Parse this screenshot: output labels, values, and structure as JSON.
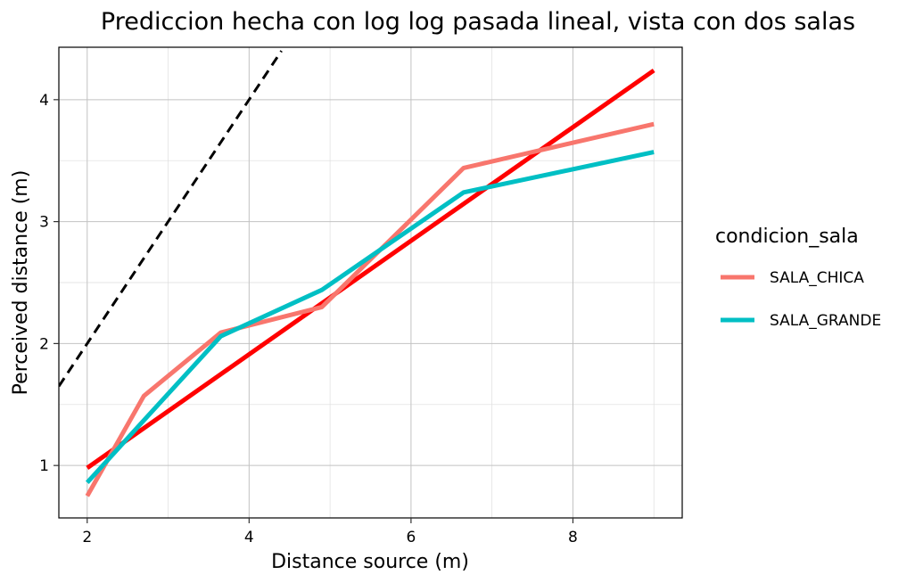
{
  "chart_data": {
    "type": "line",
    "title": "Prediccion hecha con log log pasada lineal, vista con dos salas",
    "xlabel": "Distance source (m)",
    "ylabel": "Perceived distance (m)",
    "xlim": [
      1.65,
      9.35
    ],
    "ylim": [
      0.57,
      4.43
    ],
    "x_ticks": [
      2,
      4,
      6,
      8
    ],
    "y_ticks": [
      1,
      2,
      3,
      4
    ],
    "grid": true,
    "legend": {
      "title": "condicion_sala",
      "placement": "right"
    },
    "series": [
      {
        "name": "SALA_CHICA",
        "color": "#F8766D",
        "x": [
          2.0,
          2.7,
          3.65,
          4.9,
          6.65,
          9.0
        ],
        "y": [
          0.75,
          1.57,
          2.09,
          2.3,
          3.44,
          3.8
        ]
      },
      {
        "name": "SALA_GRANDE",
        "color": "#00BFC4",
        "x": [
          2.0,
          2.7,
          3.65,
          4.9,
          6.65,
          9.0
        ],
        "y": [
          0.86,
          1.37,
          2.06,
          2.44,
          3.24,
          3.57
        ]
      }
    ],
    "fit_line": {
      "color": "#FF0000",
      "x": [
        2.0,
        9.0
      ],
      "y": [
        0.98,
        4.24
      ]
    },
    "identity_line": {
      "color": "#000000",
      "style": "dashed",
      "x": [
        1.65,
        4.4
      ],
      "y": [
        1.65,
        4.4
      ]
    }
  }
}
